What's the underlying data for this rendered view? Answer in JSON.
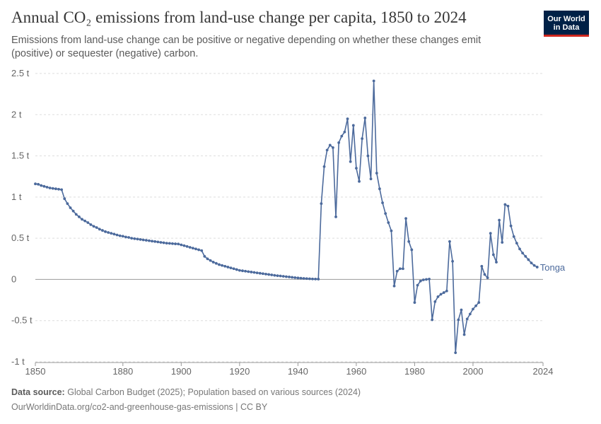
{
  "header": {
    "title": "Annual CO₂ emissions from land-use change per capita, 1850 to 2024",
    "subtitle": "Emissions from land-use change can be positive or negative depending on whether these changes emit (positive) or sequester (negative) carbon.",
    "logo_line1": "Our World",
    "logo_line2": "in Data"
  },
  "footer": {
    "source_label": "Data source:",
    "source_text": "Global Carbon Budget (2025); Population based on various sources (2024)",
    "url_text": "OurWorldinData.org/co2-and-greenhouse-gas-emissions | CC BY"
  },
  "colors": {
    "series": "#4c6a9c",
    "grid": "#dddddd",
    "zero_line": "#999999"
  },
  "chart_data": {
    "type": "line",
    "xlim": [
      1850,
      2024
    ],
    "ylim": [
      -1,
      2.5
    ],
    "x_ticks": [
      1850,
      1880,
      1900,
      1920,
      1940,
      1960,
      1980,
      2000,
      2024
    ],
    "y_ticks": [
      {
        "value": 2.5,
        "label": "2.5 t"
      },
      {
        "value": 2,
        "label": "2 t"
      },
      {
        "value": 1.5,
        "label": "1.5 t"
      },
      {
        "value": 1,
        "label": "1 t"
      },
      {
        "value": 0.5,
        "label": "0.5 t"
      },
      {
        "value": 0,
        "label": "0"
      },
      {
        "value": -0.5,
        "label": "-0.5 t"
      },
      {
        "value": -1,
        "label": "-1 t"
      }
    ],
    "grid": true,
    "series": [
      {
        "name": "Tonga",
        "x_start": 1850,
        "values": [
          1.16,
          1.155,
          1.14,
          1.13,
          1.12,
          1.11,
          1.105,
          1.1,
          1.095,
          1.09,
          0.98,
          0.92,
          0.87,
          0.83,
          0.79,
          0.76,
          0.73,
          0.71,
          0.69,
          0.665,
          0.645,
          0.63,
          0.61,
          0.595,
          0.58,
          0.57,
          0.56,
          0.55,
          0.54,
          0.53,
          0.525,
          0.515,
          0.51,
          0.5,
          0.495,
          0.49,
          0.485,
          0.48,
          0.475,
          0.47,
          0.465,
          0.46,
          0.455,
          0.45,
          0.445,
          0.44,
          0.438,
          0.435,
          0.432,
          0.43,
          0.42,
          0.41,
          0.4,
          0.39,
          0.38,
          0.37,
          0.36,
          0.35,
          0.28,
          0.25,
          0.23,
          0.21,
          0.195,
          0.18,
          0.17,
          0.16,
          0.15,
          0.14,
          0.13,
          0.12,
          0.11,
          0.105,
          0.1,
          0.095,
          0.09,
          0.085,
          0.08,
          0.075,
          0.07,
          0.065,
          0.06,
          0.055,
          0.05,
          0.045,
          0.042,
          0.038,
          0.034,
          0.03,
          0.026,
          0.022,
          0.018,
          0.015,
          0.012,
          0.01,
          0.008,
          0.006,
          0.005,
          0.004,
          0.92,
          1.37,
          1.57,
          1.63,
          1.6,
          0.76,
          1.66,
          1.74,
          1.79,
          1.95,
          1.43,
          1.87,
          1.35,
          1.19,
          1.71,
          1.96,
          1.5,
          1.22,
          2.41,
          1.29,
          1.1,
          0.93,
          0.8,
          0.69,
          0.59,
          -0.08,
          0.1,
          0.13,
          0.13,
          0.74,
          0.46,
          0.36,
          -0.28,
          -0.07,
          -0.02,
          -0.005,
          0.0,
          0.005,
          -0.49,
          -0.27,
          -0.21,
          -0.18,
          -0.16,
          -0.14,
          0.46,
          0.22,
          -0.89,
          -0.49,
          -0.37,
          -0.67,
          -0.48,
          -0.42,
          -0.36,
          -0.32,
          -0.28,
          0.16,
          0.06,
          0.02,
          0.56,
          0.3,
          0.21,
          0.72,
          0.45,
          0.91,
          0.89,
          0.65,
          0.52,
          0.44,
          0.37,
          0.32,
          0.28,
          0.24,
          0.2,
          0.17,
          0.15
        ]
      }
    ]
  }
}
